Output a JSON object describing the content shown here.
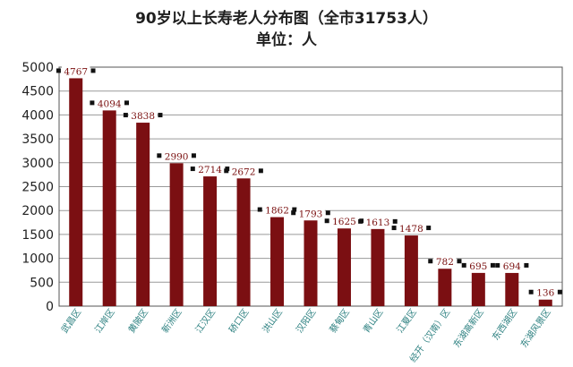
{
  "chart_data": {
    "type": "bar",
    "title": "90岁以上长寿老人分布图（全市31753人）",
    "subtitle": "单位：人",
    "xlabel": "",
    "ylabel": "",
    "ylim": [
      0,
      5000
    ],
    "yticks": [
      0,
      500,
      1000,
      1500,
      2000,
      2500,
      3000,
      3500,
      4000,
      4500,
      5000
    ],
    "grid": "horizontal",
    "bar_color": "#7b0f12",
    "categories": [
      "武昌区",
      "江岸区",
      "黄陂区",
      "新洲区",
      "江汉区",
      "硚口区",
      "洪山区",
      "汉阳区",
      "蔡甸区",
      "青山区",
      "江夏区",
      "经开（汉南）区",
      "东湖高新区",
      "东西湖区",
      "东湖风景区"
    ],
    "values": [
      4767,
      4094,
      3838,
      2990,
      2714,
      2672,
      1862,
      1793,
      1625,
      1613,
      1478,
      782,
      695,
      694,
      136
    ],
    "data_labels": [
      "4767",
      "4094",
      "3838",
      "2990",
      "2714",
      "2672",
      "1862",
      "1793",
      "1625",
      "1613",
      "1478",
      "782",
      "695",
      "694",
      "136"
    ]
  }
}
